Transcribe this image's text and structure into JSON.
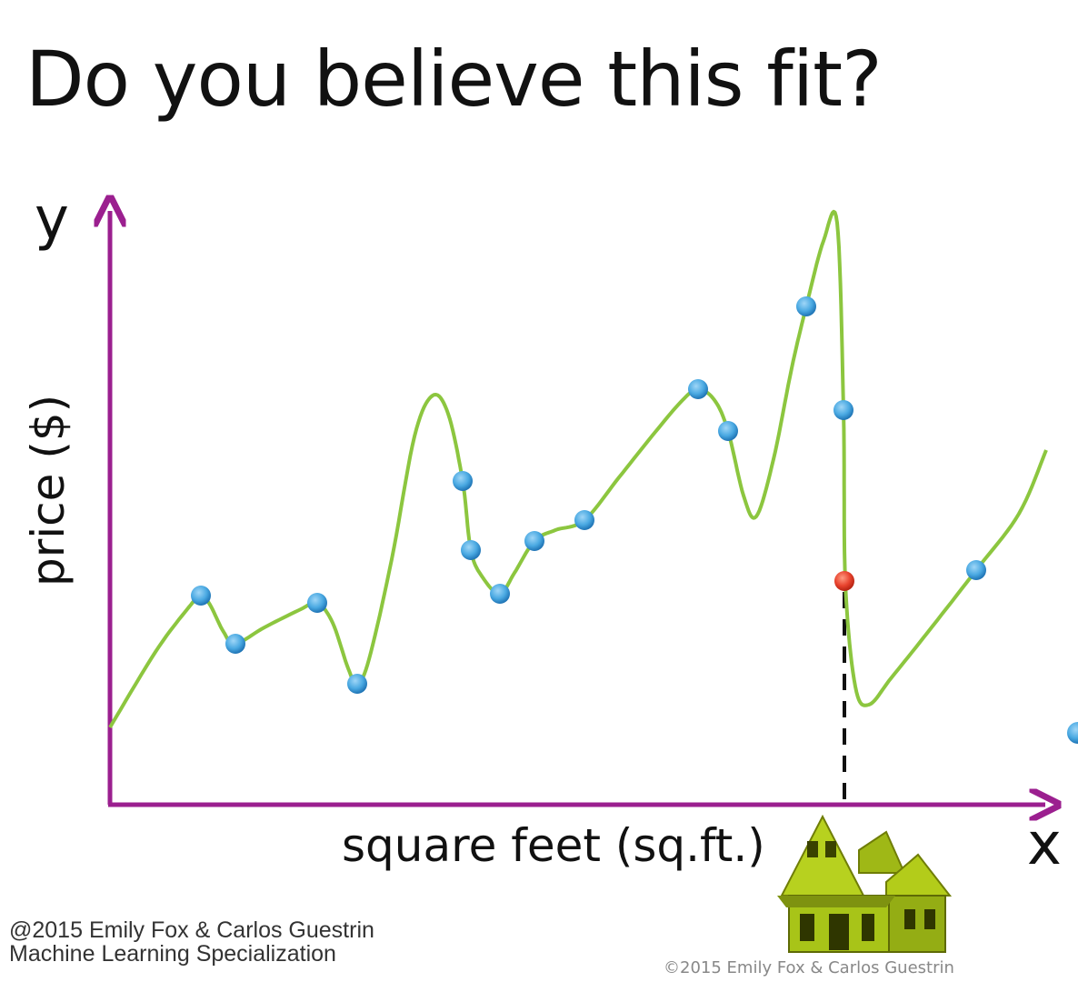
{
  "slide": {
    "title": "Do you believe this fit?",
    "watermark_line1": "@2015 Emily Fox & Carlos Guestrin",
    "watermark_line2": "Machine Learning Specialization",
    "copyright": "©2015 Emily Fox & Carlos Guestrin"
  },
  "colors": {
    "axis": "#9b1f8f",
    "fit_curve": "#8cc63f",
    "data_point": "#4aa9e2",
    "prediction_point": "#e8432e",
    "house": "#a8c418"
  },
  "chart_data": {
    "type": "line",
    "title": "Do you believe this fit?",
    "xlabel": "square feet (sq.ft.)",
    "ylabel": "price ($)",
    "x_axis_letter": "x",
    "y_axis_letter": "y",
    "grid": false,
    "xlim": [
      0,
      1035
    ],
    "ylim": [
      0,
      660
    ],
    "observations": [
      {
        "x": 100,
        "y": 230
      },
      {
        "x": 138,
        "y": 177
      },
      {
        "x": 228,
        "y": 222
      },
      {
        "x": 272,
        "y": 133
      },
      {
        "x": 388,
        "y": 356
      },
      {
        "x": 397,
        "y": 280
      },
      {
        "x": 429,
        "y": 232
      },
      {
        "x": 467,
        "y": 290
      },
      {
        "x": 522,
        "y": 313
      },
      {
        "x": 647,
        "y": 457
      },
      {
        "x": 680,
        "y": 411
      },
      {
        "x": 766,
        "y": 548
      },
      {
        "x": 807,
        "y": 434
      },
      {
        "x": 953,
        "y": 258
      }
    ],
    "fit_curve": [
      {
        "x": 0,
        "y": 85
      },
      {
        "x": 50,
        "y": 168
      },
      {
        "x": 85,
        "y": 215
      },
      {
        "x": 100,
        "y": 230
      },
      {
        "x": 110,
        "y": 220
      },
      {
        "x": 125,
        "y": 190
      },
      {
        "x": 138,
        "y": 177
      },
      {
        "x": 170,
        "y": 195
      },
      {
        "x": 210,
        "y": 215
      },
      {
        "x": 228,
        "y": 222
      },
      {
        "x": 245,
        "y": 200
      },
      {
        "x": 262,
        "y": 150
      },
      {
        "x": 272,
        "y": 133
      },
      {
        "x": 285,
        "y": 160
      },
      {
        "x": 310,
        "y": 270
      },
      {
        "x": 335,
        "y": 405
      },
      {
        "x": 355,
        "y": 450
      },
      {
        "x": 372,
        "y": 430
      },
      {
        "x": 388,
        "y": 356
      },
      {
        "x": 397,
        "y": 280
      },
      {
        "x": 410,
        "y": 250
      },
      {
        "x": 429,
        "y": 232
      },
      {
        "x": 445,
        "y": 255
      },
      {
        "x": 467,
        "y": 290
      },
      {
        "x": 490,
        "y": 302
      },
      {
        "x": 522,
        "y": 313
      },
      {
        "x": 560,
        "y": 360
      },
      {
        "x": 600,
        "y": 410
      },
      {
        "x": 630,
        "y": 445
      },
      {
        "x": 647,
        "y": 457
      },
      {
        "x": 665,
        "y": 445
      },
      {
        "x": 680,
        "y": 411
      },
      {
        "x": 697,
        "y": 340
      },
      {
        "x": 711,
        "y": 317
      },
      {
        "x": 730,
        "y": 380
      },
      {
        "x": 750,
        "y": 480
      },
      {
        "x": 766,
        "y": 548
      },
      {
        "x": 785,
        "y": 620
      },
      {
        "x": 800,
        "y": 640
      },
      {
        "x": 807,
        "y": 434
      },
      {
        "x": 809,
        "y": 245
      },
      {
        "x": 820,
        "y": 130
      },
      {
        "x": 835,
        "y": 110
      },
      {
        "x": 860,
        "y": 140
      },
      {
        "x": 900,
        "y": 190
      },
      {
        "x": 953,
        "y": 258
      },
      {
        "x": 1000,
        "y": 320
      },
      {
        "x": 1030,
        "y": 390
      }
    ],
    "prediction": {
      "x": 808,
      "y": 246
    }
  }
}
